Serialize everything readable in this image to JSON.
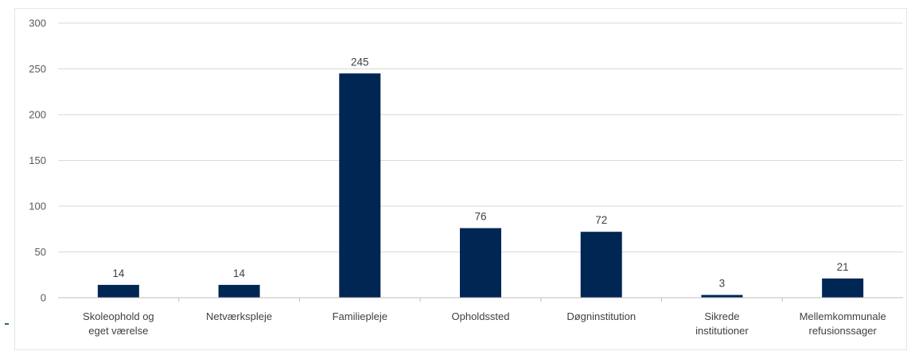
{
  "chart_data": {
    "type": "bar",
    "categories": [
      [
        "Skoleophold og",
        "eget værelse"
      ],
      [
        "Netværkspleje"
      ],
      [
        "Familiepleje"
      ],
      [
        "Opholdssted"
      ],
      [
        "Døgninstitution"
      ],
      [
        "Sikrede",
        "institutioner"
      ],
      [
        "Mellemkommunale",
        "refusionssager"
      ]
    ],
    "values": [
      14,
      14,
      245,
      76,
      72,
      3,
      21
    ],
    "ylim": [
      0,
      300
    ],
    "yticks": [
      0,
      50,
      100,
      150,
      200,
      250,
      300
    ],
    "title": "",
    "xlabel": "",
    "ylabel": "",
    "grid": true,
    "legend": "none",
    "colors": {
      "bar": "#002654",
      "grid": "#d9d9d9",
      "axis": "#bfbfbf"
    }
  }
}
